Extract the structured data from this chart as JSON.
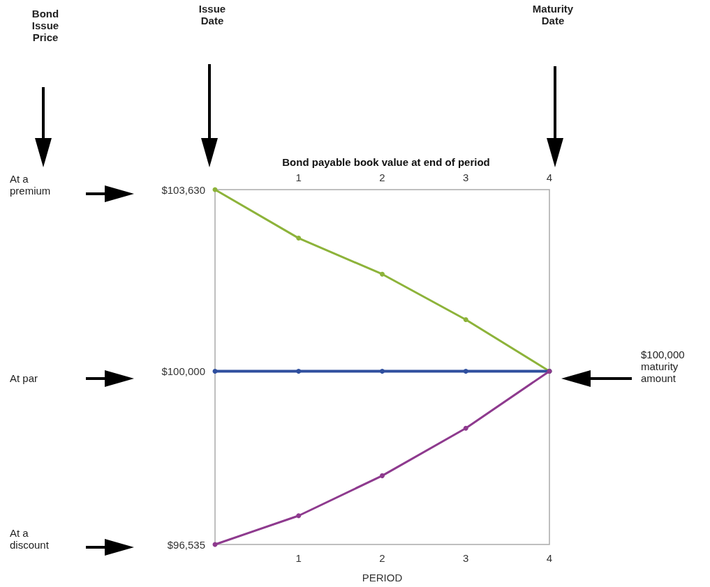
{
  "chart_data": {
    "type": "line",
    "title": "Bond payable book value at end of period",
    "xlabel": "PERIOD",
    "x": [
      0,
      1,
      2,
      3,
      4
    ],
    "xlim": [
      0,
      4
    ],
    "xticks": [
      1,
      2,
      3,
      4
    ],
    "x2lim": [
      0,
      4
    ],
    "x2ticks": [
      1,
      2,
      3,
      4
    ],
    "ylim": [
      96535,
      103630
    ],
    "yticks": [
      {
        "value": 96535,
        "label": "$96,535"
      },
      {
        "value": 100000,
        "label": "$100,000"
      },
      {
        "value": 103630,
        "label": "$103,630"
      }
    ],
    "series": [
      {
        "color": "#8db33a",
        "values": [
          103630,
          102660,
          101940,
          101030,
          100000
        ]
      },
      {
        "color": "#2f4f9e",
        "values": [
          100000,
          100000,
          100000,
          100000,
          100000
        ]
      },
      {
        "color": "#8e3a8e",
        "values": [
          96535,
          97110,
          97910,
          98860,
          100000
        ]
      }
    ],
    "marker": "circle",
    "grid": false,
    "annotations": [
      "Bond Issue Price",
      "Issue Date",
      "Maturity Date",
      "At a premium",
      "At par",
      "At a discount",
      "$100,000 maturity amount"
    ]
  }
}
